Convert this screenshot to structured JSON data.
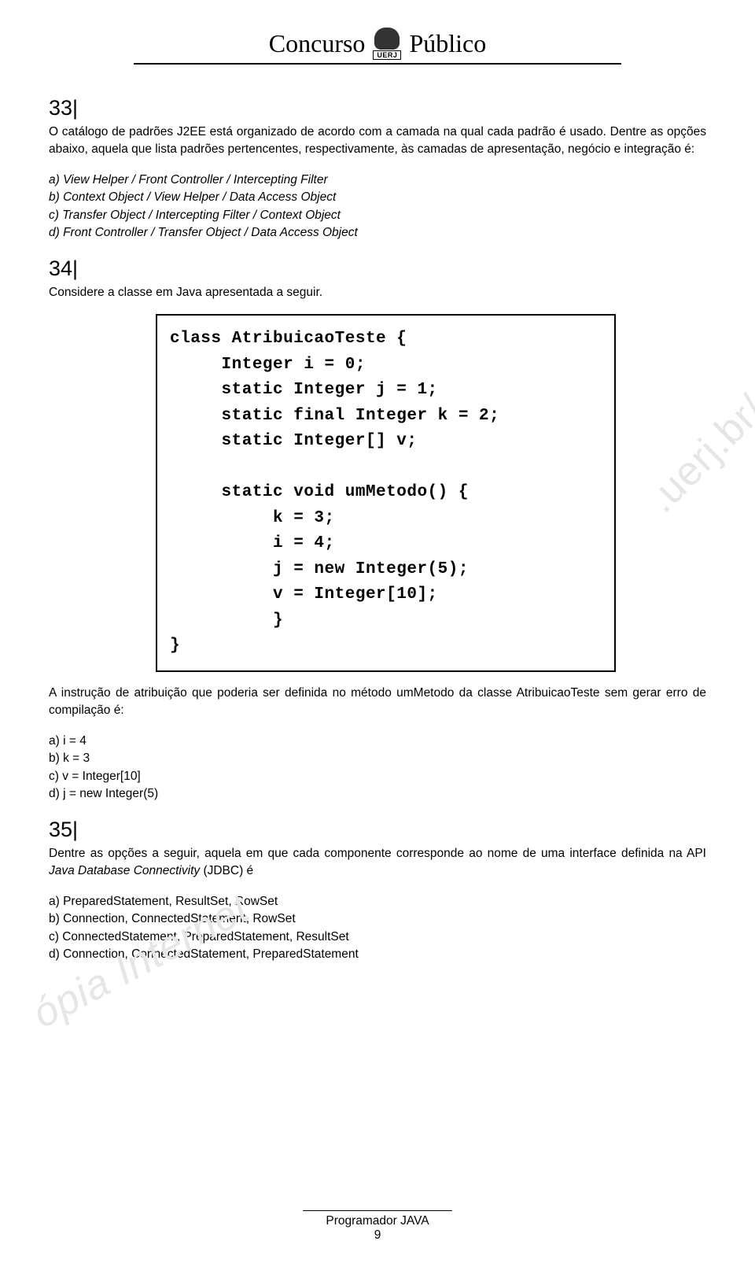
{
  "header": {
    "left": "Concurso",
    "right": "Público",
    "logo_label": "UERJ"
  },
  "q33": {
    "num": "33|",
    "para1": "O catálogo de padrões J2EE está organizado de acordo com a camada na qual cada padrão é usado. Dentre as opções abaixo, aquela que lista padrões pertencentes, respectivamente, às camadas de apresentação, negócio e integração é:",
    "opts": {
      "a": "a) View Helper / Front Controller / Intercepting Filter",
      "b": "b) Context Object / View Helper / Data Access Object",
      "c": "c) Transfer Object / Intercepting Filter / Context Object",
      "d": "d) Front Controller / Transfer Object / Data Access Object"
    }
  },
  "q34": {
    "num": "34|",
    "para1": "Considere a classe em Java apresentada a seguir.",
    "code": [
      "class AtribuicaoTeste {",
      "     Integer i = 0;",
      "     static Integer j = 1;",
      "     static final Integer k = 2;",
      "     static Integer[] v;",
      "",
      "     static void umMetodo() {",
      "          k = 3;",
      "          i = 4;",
      "          j = new Integer(5);",
      "          v = Integer[10];",
      "          }",
      "}"
    ],
    "para2": "A instrução de atribuição que poderia ser definida no método umMetodo da classe AtribuicaoTeste sem gerar erro de compilação é:",
    "opts": {
      "a": "a) i = 4",
      "b": "b) k = 3",
      "c": "c) v = Integer[10]",
      "d": "d) j = new Integer(5)"
    }
  },
  "q35": {
    "num": "35|",
    "para1_pre": "Dentre as opções a seguir, aquela em que cada componente corresponde ao nome de uma interface definida na API ",
    "para1_it": "Java Database Connectivity",
    "para1_post": " (JDBC) é",
    "opts": {
      "a": "a) PreparedStatement, ResultSet, RowSet",
      "b": "b) Connection, ConnectedStatement, RowSet",
      "c": "c) ConnectedStatement, PreparedStatement, ResultSet",
      "d": "d) Connection, ConnectedStatement, PreparedStatement"
    }
  },
  "watermark1": ".uerj.br/",
  "watermark2": "ópia Internet",
  "footer": {
    "title": "Programador JAVA",
    "page": "9"
  }
}
